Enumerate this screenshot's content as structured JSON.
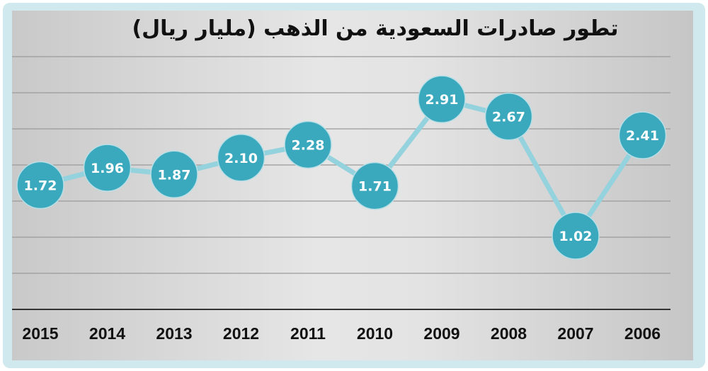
{
  "chart_data": {
    "type": "line",
    "title": "تطور صادرات السعودية من الذهب (مليار ريال)",
    "xlabel": "",
    "ylabel": "",
    "categories": [
      "2015",
      "2014",
      "2013",
      "2012",
      "2011",
      "2010",
      "2009",
      "2008",
      "2007",
      "2006"
    ],
    "values": [
      1.72,
      1.96,
      1.87,
      2.1,
      2.28,
      1.71,
      2.91,
      2.67,
      1.02,
      2.41
    ],
    "value_labels": [
      "1.72",
      "1.96",
      "1.87",
      "2.10",
      "2.28",
      "1.71",
      "2.91",
      "2.67",
      "1.02",
      "2.41"
    ],
    "ylim": [
      0,
      3.5
    ],
    "y_gridlines": [
      0.5,
      1.0,
      1.5,
      2.0,
      2.5,
      3.0,
      3.5
    ],
    "grid": true,
    "legend": "none",
    "x_order": "right-to-left",
    "colors": {
      "marker": "#3aa8bd",
      "line": "#94d2de",
      "label_text": "#ffffff",
      "frame": "#cfe9ee"
    }
  }
}
